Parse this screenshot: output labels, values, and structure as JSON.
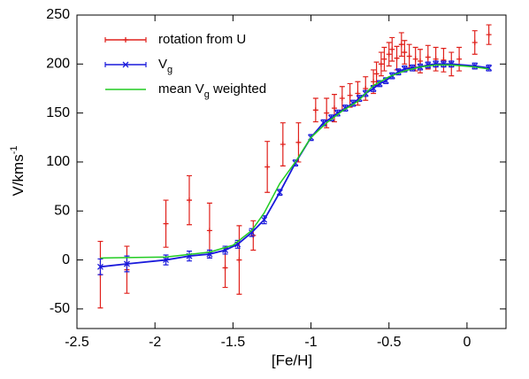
{
  "chart_data": {
    "type": "errorline",
    "x_label": "[Fe/H]",
    "y_label": [
      {
        "text": "V/kms"
      },
      {
        "text": "-1",
        "sup": true
      }
    ],
    "xlim": [
      -2.5,
      0.25
    ],
    "ylim": [
      -70,
      250
    ],
    "xticks": [
      -2.5,
      -2,
      -1.5,
      -1,
      -0.5,
      0
    ],
    "yticks": [
      -50,
      0,
      50,
      100,
      150,
      200,
      250
    ],
    "legend": "top-left",
    "series": [
      {
        "name": [
          {
            "text": "rotation from U"
          }
        ],
        "color": "#e0201b",
        "style": "errorbars",
        "marker": "plus",
        "x": [
          -2.35,
          -2.18,
          -1.93,
          -1.78,
          -1.65,
          -1.55,
          -1.46,
          -1.37,
          -1.28,
          -1.18,
          -1.08,
          -0.97,
          -0.9,
          -0.85,
          -0.8,
          -0.75,
          -0.7,
          -0.65,
          -0.6,
          -0.58,
          -0.55,
          -0.53,
          -0.5,
          -0.48,
          -0.45,
          -0.42,
          -0.4,
          -0.37,
          -0.33,
          -0.3,
          -0.25,
          -0.2,
          -0.15,
          -0.1,
          -0.05,
          0.05,
          0.14
        ],
        "values": [
          -15,
          -10,
          37,
          61,
          30,
          -8,
          0,
          25,
          95,
          118,
          120,
          153,
          150,
          155,
          165,
          168,
          170,
          175,
          182,
          190,
          200,
          205,
          210,
          215,
          206,
          220,
          212,
          208,
          205,
          203,
          207,
          205,
          204,
          200,
          205,
          222,
          230
        ],
        "errors": [
          34,
          24,
          24,
          25,
          28,
          20,
          35,
          15,
          26,
          22,
          20,
          12,
          15,
          14,
          12,
          12,
          12,
          12,
          12,
          12,
          12,
          12,
          12,
          12,
          12,
          12,
          12,
          12,
          12,
          12,
          12,
          12,
          12,
          12,
          12,
          12,
          10
        ]
      },
      {
        "name": [
          {
            "text": "V"
          },
          {
            "text": "g",
            "sub": true
          }
        ],
        "color": "#1a1adb",
        "style": "errorlines",
        "marker": "cross",
        "x": [
          -2.35,
          -2.18,
          -1.93,
          -1.78,
          -1.65,
          -1.55,
          -1.47,
          -1.38,
          -1.3,
          -1.2,
          -1.1,
          -1.0,
          -0.92,
          -0.87,
          -0.83,
          -0.78,
          -0.73,
          -0.69,
          -0.65,
          -0.6,
          -0.56,
          -0.52,
          -0.48,
          -0.44,
          -0.4,
          -0.35,
          -0.3,
          -0.25,
          -0.2,
          -0.15,
          -0.1,
          0.05,
          0.14
        ],
        "values": [
          -7,
          -4,
          0,
          4,
          6,
          10,
          16,
          28,
          41,
          69,
          99,
          125,
          140,
          145,
          150,
          155,
          160,
          165,
          170,
          175,
          180,
          183,
          188,
          192,
          195,
          196,
          197,
          199,
          200,
          200,
          200,
          198,
          196
        ],
        "errors": [
          8,
          8,
          5,
          5,
          4,
          4,
          4,
          4,
          4,
          3,
          3,
          3,
          3,
          3,
          3,
          3,
          3,
          3,
          3,
          3,
          3,
          3,
          3,
          3,
          3,
          3,
          3,
          3,
          3,
          3,
          3,
          3,
          3
        ]
      },
      {
        "name": [
          {
            "text": "mean V"
          },
          {
            "text": "g",
            "sub": true
          },
          {
            "text": " weighted"
          }
        ],
        "color": "#22cc22",
        "style": "line",
        "x": [
          -2.35,
          -1.93,
          -1.65,
          -1.5,
          -1.38,
          -1.3,
          -1.2,
          -1.1,
          -1.0,
          -0.9,
          -0.8,
          -0.7,
          -0.6,
          -0.5,
          -0.4,
          -0.3,
          -0.2,
          -0.1,
          0.05,
          0.14
        ],
        "values": [
          2,
          3,
          8,
          15,
          30,
          48,
          78,
          100,
          125,
          140,
          152,
          162,
          178,
          187,
          193,
          197,
          199,
          199,
          197,
          195
        ]
      }
    ]
  }
}
